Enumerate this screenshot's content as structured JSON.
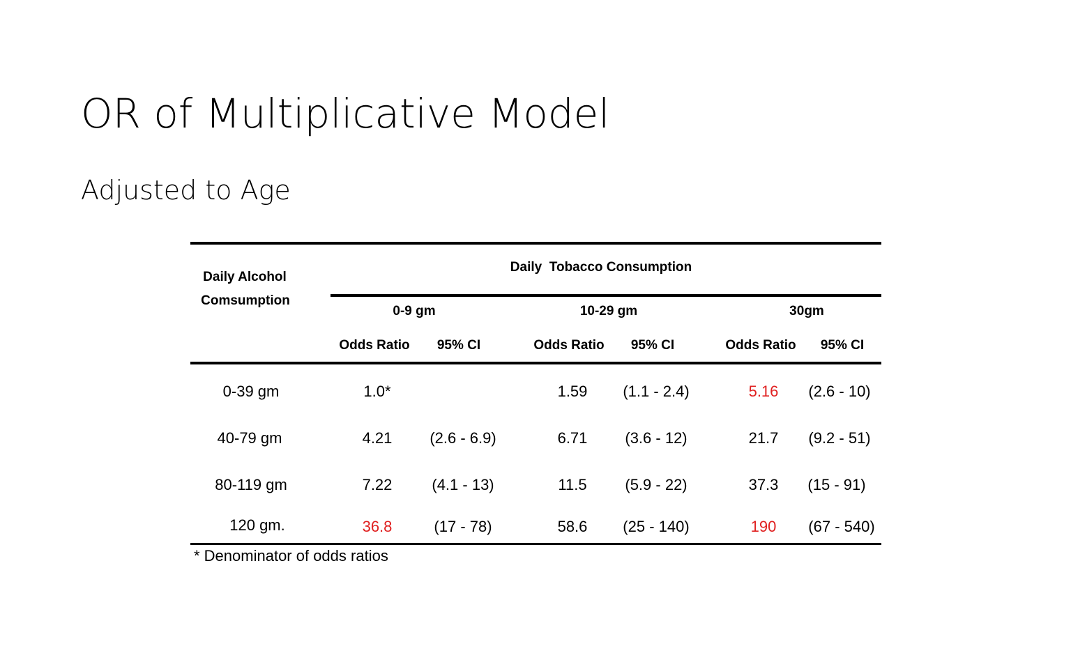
{
  "slide": {
    "title": "OR of Multiplicative Model",
    "subtitle": "Adjusted to Age"
  },
  "table": {
    "row_header_line1": "Daily Alcohol",
    "row_header_line2": "Comsumption",
    "column_group_header": "Daily  Tobacco Consumption",
    "tobacco_groups": [
      "0-9 gm",
      "10-29 gm",
      "30gm"
    ],
    "sub_headers": [
      "Odds Ratio",
      "95% CI",
      "Odds Ratio",
      "95% CI",
      "Odds Ratio",
      "95% CI"
    ],
    "rows": [
      {
        "label": "0-39 gm",
        "cells": [
          "1.0*",
          "",
          "1.59",
          "(1.1 - 2.4)",
          "5.16",
          "(2.6 - 10)"
        ]
      },
      {
        "label": "40-79 gm",
        "cells": [
          "4.21",
          "(2.6 - 6.9)",
          "6.71",
          "(3.6 - 12)",
          "21.7",
          "(9.2 - 51)"
        ]
      },
      {
        "label": "80-119 gm",
        "cells": [
          "7.22",
          "(4.1 - 13)",
          "11.5",
          "(5.9 - 22)",
          "37.3",
          "(15 - 91)"
        ]
      },
      {
        "label": "120 gm.",
        "cells": [
          "36.8",
          "(17 - 78)",
          "58.6",
          "(25 - 140)",
          "190",
          "(67 - 540)"
        ]
      }
    ],
    "highlight_color": "#e02020",
    "footnote": "* Denominator of odds ratios"
  }
}
